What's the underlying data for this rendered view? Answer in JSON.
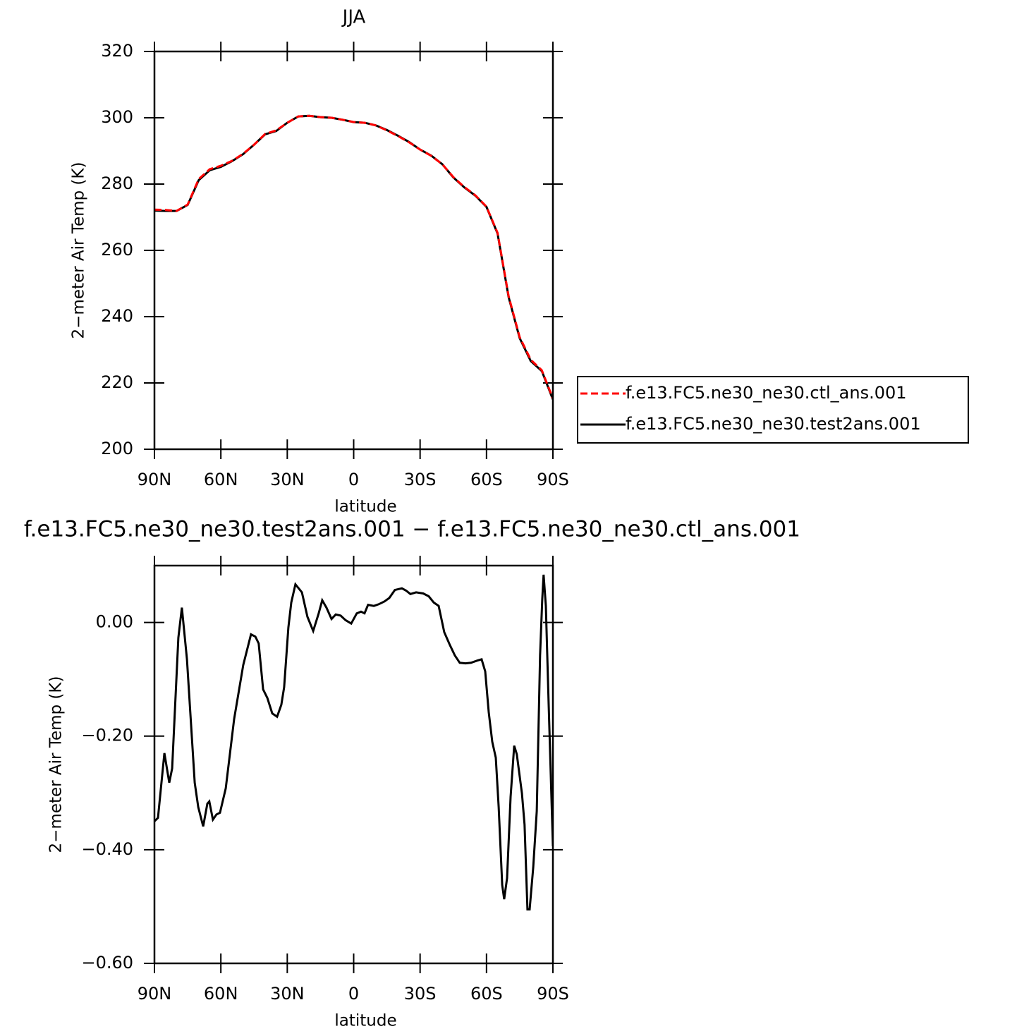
{
  "chart_data": [
    {
      "type": "line",
      "title": "JJA",
      "xlabel": "latitude",
      "ylabel": "2−meter Air Temp (K)",
      "xlim": [
        90,
        -90
      ],
      "xticks": [
        {
          "value": 90,
          "label": "90N"
        },
        {
          "value": 60,
          "label": "60N"
        },
        {
          "value": 30,
          "label": "30N"
        },
        0,
        {
          "value": -30,
          "label": "30S"
        },
        {
          "value": -60,
          "label": "60S"
        },
        {
          "value": -90,
          "label": "90S"
        }
      ],
      "ylim": [
        200,
        320
      ],
      "yticks": [
        200,
        220,
        240,
        260,
        280,
        300,
        320
      ],
      "legend": "right",
      "x": [
        90,
        85,
        80,
        75,
        70,
        65,
        60,
        55,
        50,
        45,
        40,
        35,
        30,
        25,
        20,
        15,
        10,
        5,
        0,
        -5,
        -10,
        -15,
        -20,
        -25,
        -30,
        -35,
        -40,
        -45,
        -50,
        -55,
        -60,
        -65,
        -70,
        -75,
        -80,
        -85,
        -90
      ],
      "series": [
        {
          "name": "f.e13.FC5.ne30_ne30.ctl_ans.001",
          "color": "#ff0000",
          "line_style": "dashed",
          "values": [
            272.3,
            272.2,
            271.9,
            273.8,
            281.5,
            284.5,
            285.5,
            287,
            289.1,
            291.9,
            295.1,
            296.2,
            298.5,
            300.4,
            300.6,
            300.2,
            300,
            299.4,
            298.7,
            298.5,
            297.7,
            296.2,
            294.5,
            292.6,
            290.4,
            288.5,
            286,
            282.1,
            279.1,
            276.6,
            273.2,
            265.3,
            246.2,
            233.8,
            227,
            223.8,
            215.3
          ]
        },
        {
          "name": "f.e13.FC5.ne30_ne30.test2ans.001",
          "color": "#000000",
          "line_style": "solid",
          "values": [
            272.0,
            271.9,
            271.9,
            273.7,
            281.2,
            284.2,
            285.2,
            286.9,
            289.0,
            291.9,
            295.0,
            296.0,
            298.5,
            300.4,
            300.6,
            300.2,
            300,
            299.4,
            298.7,
            298.5,
            297.7,
            296.3,
            294.6,
            292.7,
            290.4,
            288.6,
            286,
            282.0,
            279.0,
            276.5,
            273.1,
            265.1,
            245.9,
            233.5,
            226.6,
            223.6,
            215.0
          ]
        }
      ]
    },
    {
      "type": "line",
      "title": "f.e13.FC5.ne30_ne30.test2ans.001  −  f.e13.FC5.ne30_ne30.ctl_ans.001",
      "xlabel": "latitude",
      "ylabel": "2−meter Air Temp (K)",
      "xlim": [
        90,
        -90
      ],
      "xticks": [
        {
          "value": 90,
          "label": "90N"
        },
        {
          "value": 60,
          "label": "60N"
        },
        {
          "value": 30,
          "label": "30N"
        },
        0,
        {
          "value": -30,
          "label": "30S"
        },
        {
          "value": -60,
          "label": "60S"
        },
        {
          "value": -90,
          "label": "90S"
        }
      ],
      "ylim": [
        -0.6,
        0.1
      ],
      "yticks": [
        {
          "value": -0.6,
          "label": "−0.60"
        },
        {
          "value": -0.4,
          "label": "−0.40"
        },
        {
          "value": -0.2,
          "label": "−0.20"
        },
        {
          "value": 0,
          "label": "0.00"
        }
      ],
      "x": [
        90,
        88.4,
        85.5,
        83.3,
        82,
        79.2,
        77.6,
        75.3,
        71.8,
        70.2,
        68,
        66.1,
        65.2,
        63.6,
        62,
        60.4,
        57.8,
        54,
        49.9,
        46.4,
        44.4,
        42.9,
        40.9,
        39,
        36.8,
        34.6,
        32.7,
        31.4,
        29.5,
        28.2,
        26.3,
        23.4,
        20.9,
        18.3,
        15.8,
        14.2,
        12.3,
        10,
        8.1,
        5.9,
        3.7,
        1.1,
        -1.4,
        -3.3,
        -4.9,
        -6.5,
        -9.1,
        -11.3,
        -13.9,
        -16.1,
        -18.6,
        -21.8,
        -23.7,
        -25.6,
        -28.2,
        -31.4,
        -33.9,
        -36.2,
        -38.4,
        -40.9,
        -43.5,
        -45.7,
        -47.9,
        -50.5,
        -53,
        -55.9,
        -57.8,
        -59.4,
        -61,
        -62.6,
        -64.2,
        -65.5,
        -67.1,
        -68,
        -69.3,
        -70.9,
        -72.5,
        -73.7,
        -76,
        -77.2,
        -78.5,
        -79.5,
        -81.1,
        -82.7,
        -84.2,
        -85.2,
        -85.8,
        -86.8,
        -88.1,
        -90
      ],
      "series": [
        {
          "color": "#000000",
          "line_style": "solid",
          "values": [
            -0.35,
            -0.344,
            -0.23,
            -0.282,
            -0.257,
            -0.027,
            0.026,
            -0.065,
            -0.282,
            -0.325,
            -0.359,
            -0.319,
            -0.315,
            -0.347,
            -0.338,
            -0.335,
            -0.292,
            -0.17,
            -0.075,
            -0.021,
            -0.025,
            -0.037,
            -0.118,
            -0.133,
            -0.16,
            -0.166,
            -0.145,
            -0.114,
            -0.009,
            0.035,
            0.067,
            0.053,
            0.01,
            -0.015,
            0.016,
            0.039,
            0.026,
            0.006,
            0.014,
            0.012,
            0.004,
            -0.002,
            0.016,
            0.019,
            0.016,
            0.031,
            0.029,
            0.032,
            0.037,
            0.043,
            0.057,
            0.06,
            0.056,
            0.05,
            0.053,
            0.051,
            0.046,
            0.035,
            0.029,
            -0.017,
            -0.04,
            -0.058,
            -0.071,
            -0.072,
            -0.071,
            -0.067,
            -0.065,
            -0.086,
            -0.158,
            -0.21,
            -0.238,
            -0.325,
            -0.462,
            -0.487,
            -0.45,
            -0.307,
            -0.217,
            -0.232,
            -0.301,
            -0.356,
            -0.505,
            -0.505,
            -0.431,
            -0.332,
            -0.058,
            0.041,
            0.084,
            0.029,
            -0.145,
            -0.394
          ]
        }
      ]
    }
  ]
}
